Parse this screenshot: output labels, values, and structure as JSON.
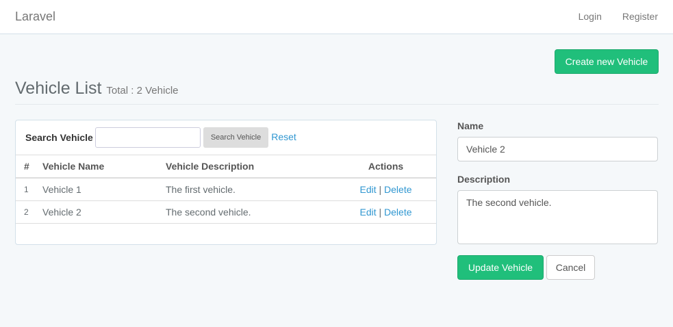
{
  "nav": {
    "brand": "Laravel",
    "login": "Login",
    "register": "Register"
  },
  "page": {
    "create_button": "Create new Vehicle",
    "title": "Vehicle List",
    "subtitle": "Total : 2 Vehicle"
  },
  "search": {
    "label": "Search Vehicle",
    "value": "",
    "button": "Search Vehicle",
    "reset": "Reset"
  },
  "table": {
    "headers": [
      "#",
      "Vehicle Name",
      "Vehicle Description",
      "Actions"
    ],
    "rows": [
      {
        "num": "1",
        "name": "Vehicle 1",
        "description": "The first vehicle.",
        "edit": "Edit",
        "sep": "|",
        "delete": "Delete"
      },
      {
        "num": "2",
        "name": "Vehicle 2",
        "description": "The second vehicle.",
        "edit": "Edit",
        "sep": "|",
        "delete": "Delete"
      }
    ]
  },
  "form": {
    "name_label": "Name",
    "name_value": "Vehicle 2",
    "description_label": "Description",
    "description_value": "The second vehicle.",
    "update": "Update Vehicle",
    "cancel": "Cancel"
  },
  "colors": {
    "success": "#20bf7b",
    "link": "#3097d1",
    "background": "#f5f8fa"
  }
}
